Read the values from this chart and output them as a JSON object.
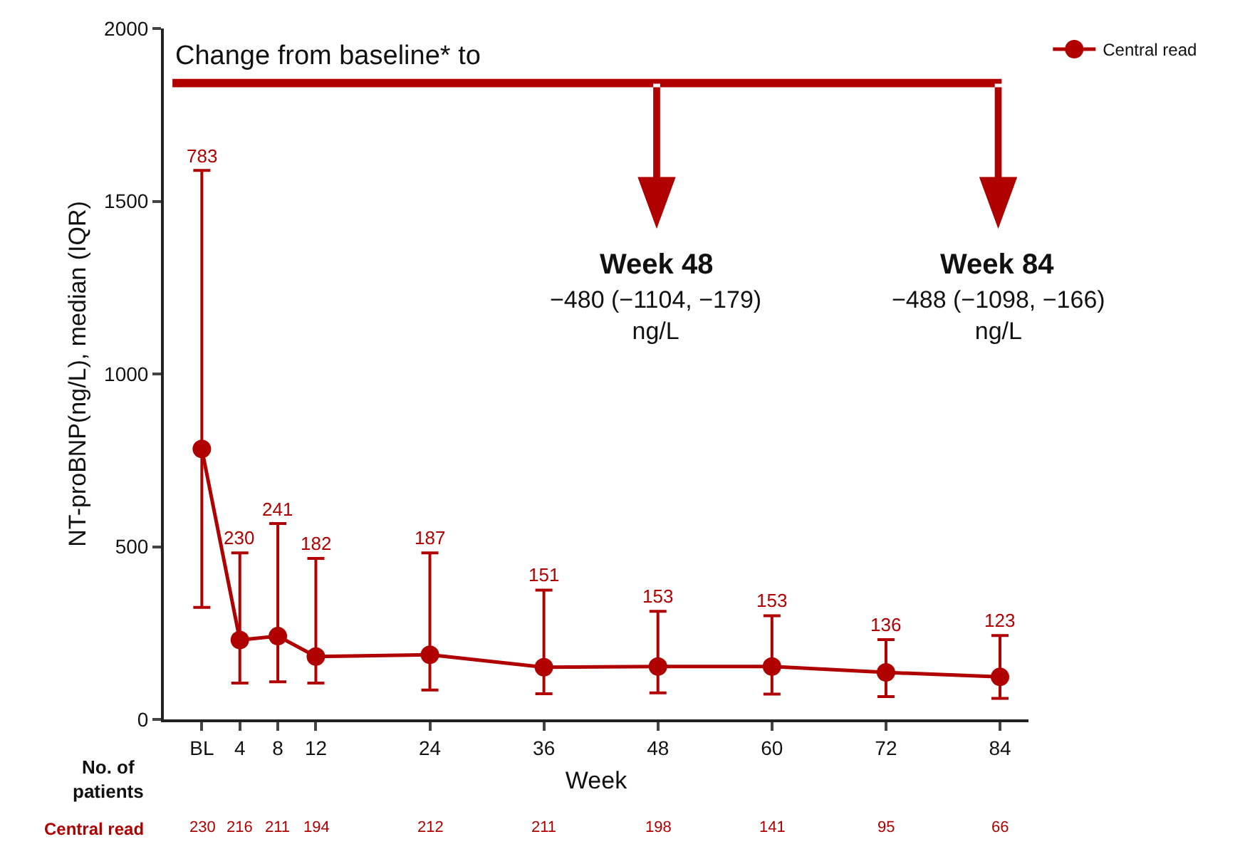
{
  "chart_data": {
    "type": "line",
    "xlabel": "Week",
    "ylabel": "NT-proBNP(ng/L), median (IQR)",
    "x": [
      0,
      4,
      8,
      12,
      24,
      36,
      48,
      60,
      72,
      84
    ],
    "xlim": [
      -4,
      87
    ],
    "xticks": [
      {
        "value": 0,
        "label": "BL"
      },
      4,
      8,
      12,
      24,
      36,
      48,
      60,
      72,
      84
    ],
    "ylim": [
      0,
      2000
    ],
    "yticks": [
      0,
      500,
      1000,
      1500,
      2000
    ],
    "series": [
      {
        "name": "Central read",
        "color": "#b00000",
        "values": [
          783,
          230,
          241,
          182,
          187,
          151,
          153,
          153,
          136,
          123
        ],
        "errors": [
          [
            324,
            1589
          ],
          [
            105,
            482
          ],
          [
            109,
            567
          ],
          [
            105,
            466
          ],
          [
            85,
            482
          ],
          [
            74,
            374
          ],
          [
            77,
            313
          ],
          [
            73,
            300
          ],
          [
            66,
            231
          ],
          [
            61,
            243
          ]
        ]
      }
    ],
    "marker": "circle",
    "line_style": "solid",
    "legend": "top right",
    "annotations": [
      "Change from baseline* to",
      "Week 48",
      "−480 (−1104, −179)\nng/L",
      "Week 84",
      "−488 (−1098, −166)\nng/L",
      "No. of\npatients",
      "Central read",
      "230",
      "216",
      "211",
      "194",
      "212",
      "211",
      "198",
      "141",
      "95",
      "66",
      {
        "text": "783",
        "x": 0,
        "y": 1589
      },
      {
        "text": "230",
        "x": 4,
        "y": 482
      },
      {
        "text": "241",
        "x": 8,
        "y": 567
      },
      {
        "text": "182",
        "x": 12,
        "y": 466
      },
      {
        "text": "187",
        "x": 24,
        "y": 482
      },
      {
        "text": "151",
        "x": 36,
        "y": 374
      },
      {
        "text": "153",
        "x": 48,
        "y": 313
      },
      {
        "text": "153",
        "x": 60,
        "y": 300
      },
      {
        "text": "136",
        "x": 72,
        "y": 231
      },
      {
        "text": "123",
        "x": 84,
        "y": 243
      }
    ]
  }
}
